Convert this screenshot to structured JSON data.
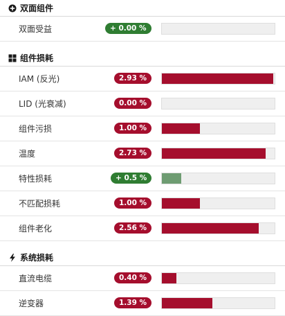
{
  "colors": {
    "loss": "#a50e2d",
    "gain": "#2f7d32",
    "gain_bar": "#6e9c72"
  },
  "sections": [
    {
      "title": "双面组件",
      "icon": "plus-circle-icon",
      "rows": [
        {
          "label": "双面受益",
          "badge": "+ 0.00 %",
          "kind": "gain",
          "bar_fraction": 0.0
        }
      ]
    },
    {
      "title": "组件损耗",
      "icon": "grid-icon",
      "rows": [
        {
          "label": "IAM (反光)",
          "badge": "2.93 %",
          "kind": "loss",
          "bar_fraction": 0.99
        },
        {
          "label": "LID (光衰减)",
          "badge": "0.00 %",
          "kind": "loss",
          "bar_fraction": 0.0
        },
        {
          "label": "组件污损",
          "badge": "1.00 %",
          "kind": "loss",
          "bar_fraction": 0.34
        },
        {
          "label": "温度",
          "badge": "2.73 %",
          "kind": "loss",
          "bar_fraction": 0.92
        },
        {
          "label": "特性损耗",
          "badge": "+ 0.5 %",
          "kind": "gain",
          "bar_fraction": 0.17
        },
        {
          "label": "不匹配损耗",
          "badge": "1.00 %",
          "kind": "loss",
          "bar_fraction": 0.34
        },
        {
          "label": "组件老化",
          "badge": "2.56 %",
          "kind": "loss",
          "bar_fraction": 0.86
        }
      ]
    },
    {
      "title": "系统损耗",
      "icon": "lightning-icon",
      "rows": [
        {
          "label": "直流电缆",
          "badge": "0.40 %",
          "kind": "loss",
          "bar_fraction": 0.13
        },
        {
          "label": "逆变器",
          "badge": "1.39 %",
          "kind": "loss",
          "bar_fraction": 0.45
        }
      ]
    }
  ]
}
